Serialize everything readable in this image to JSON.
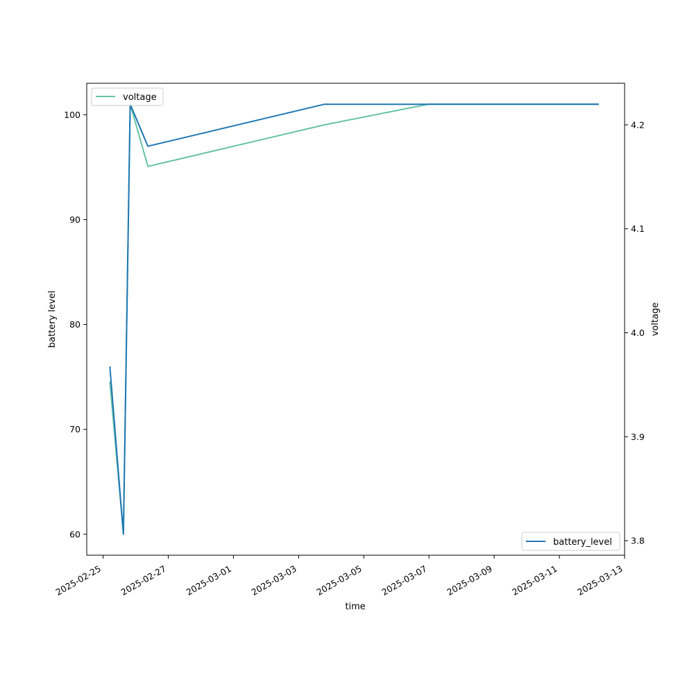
{
  "chart_data": {
    "type": "line",
    "xlabel": "time",
    "ylabel_left": "battery level",
    "ylabel_right": "voltage",
    "x_ticks": [
      "2025-02-25",
      "2025-02-27",
      "2025-03-01",
      "2025-03-03",
      "2025-03-05",
      "2025-03-07",
      "2025-03-09",
      "2025-03-11",
      "2025-03-13"
    ],
    "xlim": [
      "2025-02-24T12:00",
      "2025-03-13T00:00"
    ],
    "ylim_left": [
      58,
      103
    ],
    "yticks_left": [
      60,
      70,
      80,
      90,
      100
    ],
    "ylim_right": [
      3.786,
      4.24
    ],
    "yticks_right": [
      "3.8",
      "3.9",
      "4.0",
      "4.1",
      "4.2"
    ],
    "grid": false,
    "series": [
      {
        "name": "battery_level",
        "axis": "left",
        "color": "#1f77b4",
        "legend_position": "lower-right",
        "points": [
          {
            "x": "2025-02-25T05:00",
            "y": 76
          },
          {
            "x": "2025-02-25T15:00",
            "y": 60
          },
          {
            "x": "2025-02-25T20:00",
            "y": 101
          },
          {
            "x": "2025-02-26T09:00",
            "y": 97
          },
          {
            "x": "2025-03-03T19:00",
            "y": 101
          },
          {
            "x": "2025-03-07T00:00",
            "y": 101
          },
          {
            "x": "2025-03-12T05:00",
            "y": 101
          }
        ]
      },
      {
        "name": "voltage",
        "axis": "right",
        "color": "#66c2a5",
        "legend_position": "upper-left",
        "points": [
          {
            "x": "2025-02-25T05:00",
            "y": 3.953
          },
          {
            "x": "2025-02-25T15:00",
            "y": 3.807
          },
          {
            "x": "2025-02-25T20:00",
            "y": 4.22
          },
          {
            "x": "2025-02-26T09:00",
            "y": 4.16
          },
          {
            "x": "2025-03-03T19:00",
            "y": 4.2
          },
          {
            "x": "2025-03-07T00:00",
            "y": 4.22
          },
          {
            "x": "2025-03-12T05:00",
            "y": 4.22
          }
        ]
      }
    ]
  }
}
